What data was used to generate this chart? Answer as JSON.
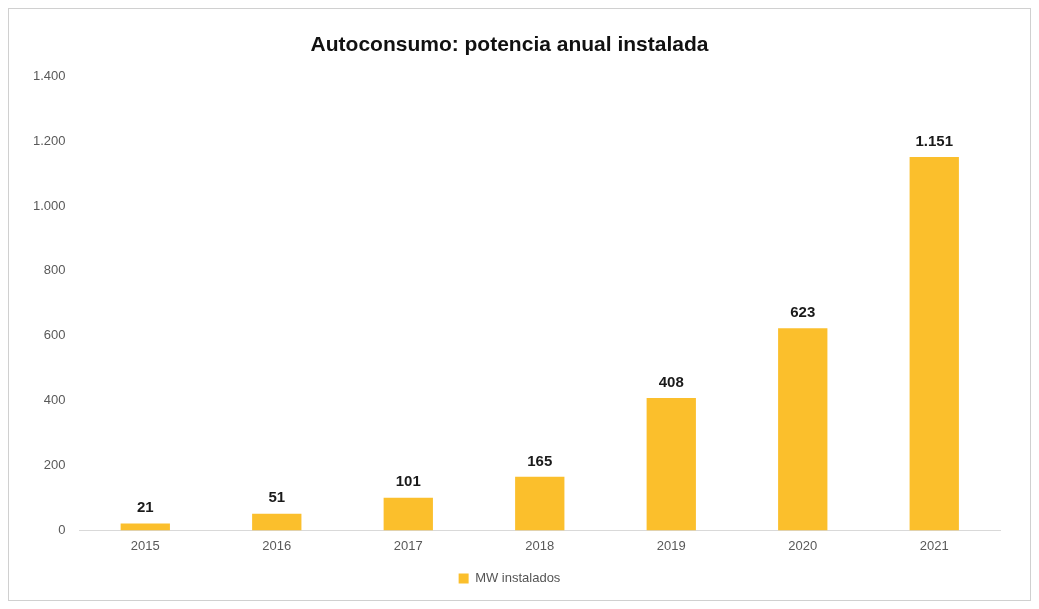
{
  "chart_data": {
    "type": "bar",
    "title": "Autoconsumo: potencia anual instalada",
    "categories": [
      "2015",
      "2016",
      "2017",
      "2018",
      "2019",
      "2020",
      "2021"
    ],
    "series": [
      {
        "name": "MW instalados",
        "color": "#fbbf2c",
        "values": [
          21,
          51,
          101,
          165,
          408,
          623,
          1151
        ],
        "value_labels": [
          "21",
          "51",
          "101",
          "165",
          "408",
          "623",
          "1.151"
        ]
      }
    ],
    "ylim": [
      0,
      1400
    ],
    "yticks": [
      0,
      {
        "value": 200,
        "label": "200"
      },
      {
        "value": 400,
        "label": "400"
      },
      {
        "value": 600,
        "label": "600"
      },
      {
        "value": 800,
        "label": "800"
      },
      {
        "value": 1000,
        "label": "1.000"
      },
      {
        "value": 1200,
        "label": "1.200"
      },
      {
        "value": 1400,
        "label": "1.400"
      }
    ],
    "grid": false,
    "legend": "bottom"
  }
}
